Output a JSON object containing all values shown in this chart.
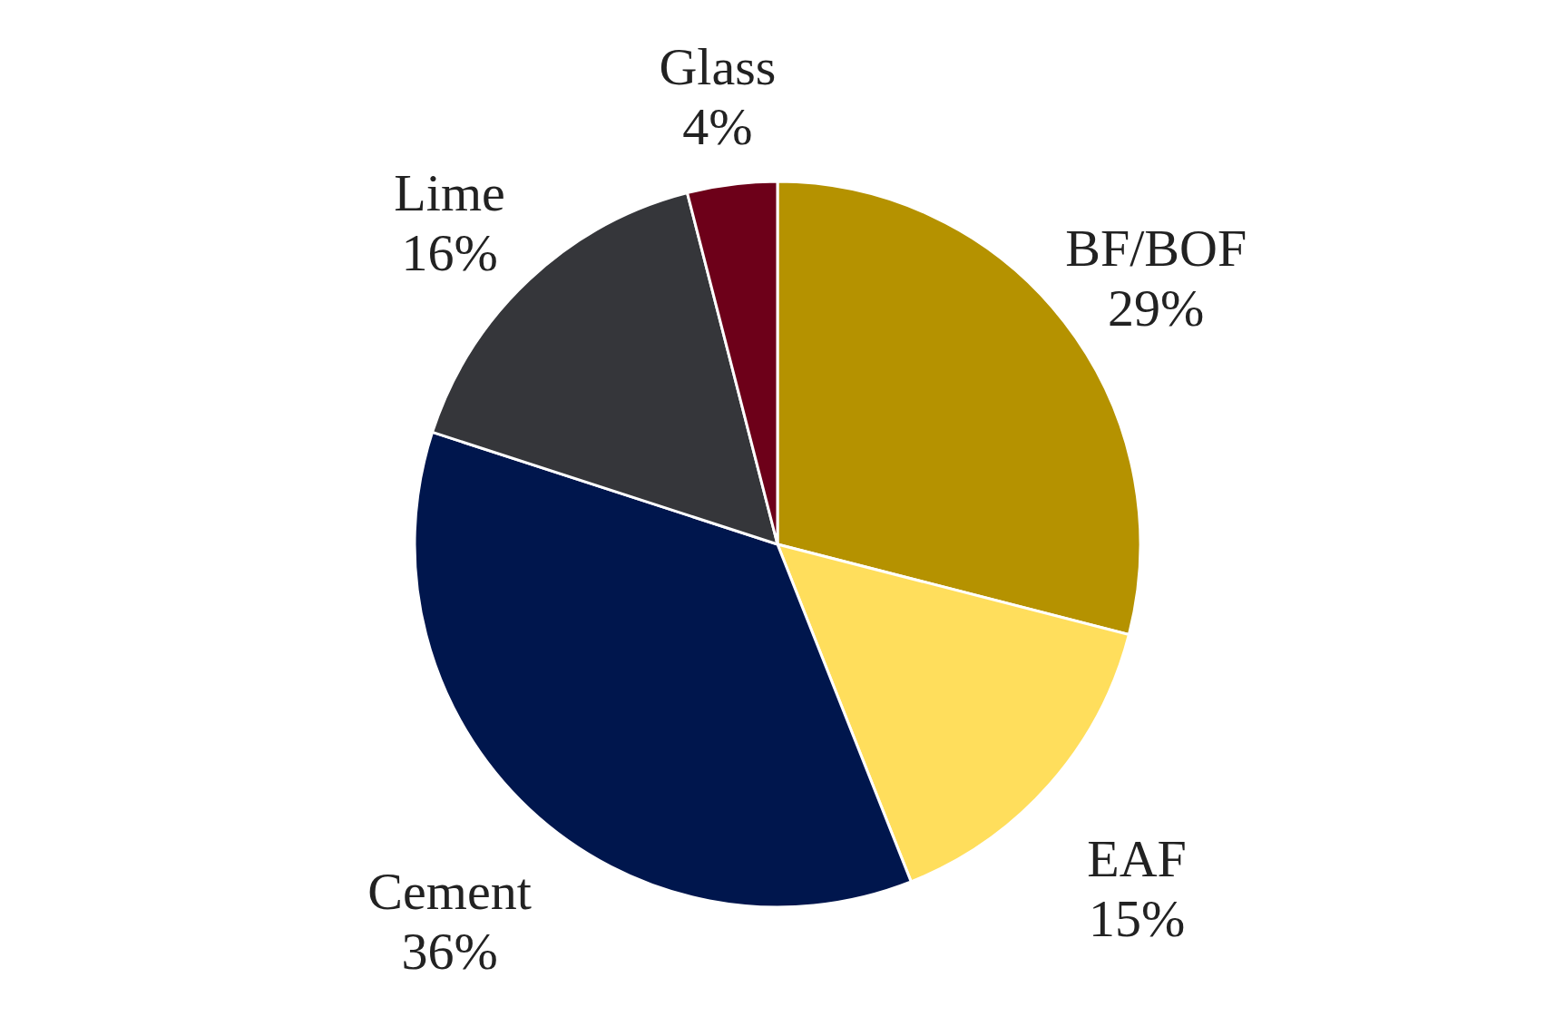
{
  "chart_data": {
    "type": "pie",
    "categories": [
      "BF/BOF",
      "EAF",
      "Cement",
      "Lime",
      "Glass"
    ],
    "values": [
      29,
      15,
      36,
      16,
      4
    ],
    "colors": [
      "#b59200",
      "#ffde5c",
      "#00164d",
      "#35363a",
      "#6d0019"
    ],
    "value_labels": [
      "29%",
      "15%",
      "36%",
      "16%",
      "4%"
    ]
  }
}
